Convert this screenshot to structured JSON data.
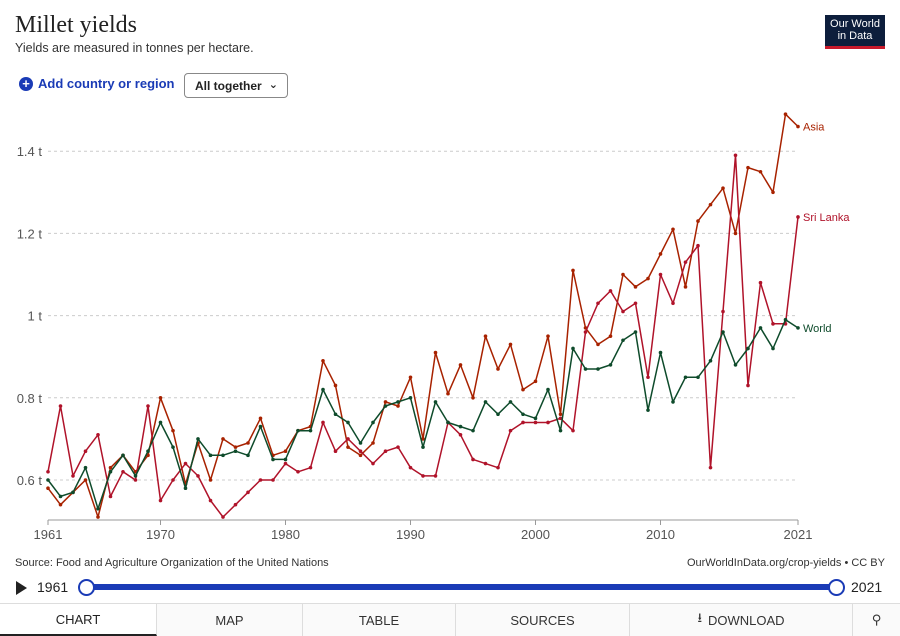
{
  "header": {
    "title": "Millet yields",
    "subtitle": "Yields are measured in tonnes per hectare.",
    "logo_line1": "Our World",
    "logo_line2": "in Data"
  },
  "controls": {
    "add_label": "Add country or region",
    "select_value": "All together"
  },
  "footer": {
    "source": "Source: Food and Agriculture Organization of the United Nations",
    "url": "OurWorldInData.org/crop-yields • CC BY"
  },
  "timeline": {
    "start": "1961",
    "end": "2021"
  },
  "tabs": [
    "CHART",
    "MAP",
    "TABLE",
    "SOURCES",
    "DOWNLOAD"
  ],
  "colors": {
    "asia": "#a82200",
    "sri_lanka": "#b0132a",
    "world": "#0e4b2b",
    "accent": "#1a3bb6"
  },
  "chart_data": {
    "type": "line",
    "x": [
      1961,
      1962,
      1963,
      1964,
      1965,
      1966,
      1967,
      1968,
      1969,
      1970,
      1971,
      1972,
      1973,
      1974,
      1975,
      1976,
      1977,
      1978,
      1979,
      1980,
      1981,
      1982,
      1983,
      1984,
      1985,
      1986,
      1987,
      1988,
      1989,
      1990,
      1991,
      1992,
      1993,
      1994,
      1995,
      1996,
      1997,
      1998,
      1999,
      2000,
      2001,
      2002,
      2003,
      2004,
      2005,
      2006,
      2007,
      2008,
      2009,
      2010,
      2011,
      2012,
      2013,
      2014,
      2015,
      2016,
      2017,
      2018,
      2019,
      2020,
      2021
    ],
    "xticks": [
      "1961",
      "1970",
      "1980",
      "1990",
      "2000",
      "2010",
      "2021"
    ],
    "yticks": [
      "0.6 t",
      "0.8 t",
      "1 t",
      "1.2 t",
      "1.4 t"
    ],
    "ytick_values": [
      0.6,
      0.8,
      1.0,
      1.2,
      1.4
    ],
    "ylim": [
      0.5,
      1.5
    ],
    "series": [
      {
        "name": "Asia",
        "values": [
          0.58,
          0.54,
          0.57,
          0.6,
          0.51,
          0.63,
          0.66,
          0.62,
          0.66,
          0.8,
          0.72,
          0.59,
          0.69,
          0.6,
          0.7,
          0.68,
          0.69,
          0.75,
          0.66,
          0.67,
          0.72,
          0.73,
          0.89,
          0.83,
          0.68,
          0.66,
          0.69,
          0.79,
          0.78,
          0.85,
          0.7,
          0.91,
          0.81,
          0.88,
          0.8,
          0.95,
          0.87,
          0.93,
          0.82,
          0.84,
          0.95,
          0.76,
          1.11,
          0.97,
          0.93,
          0.95,
          1.1,
          1.07,
          1.09,
          1.15,
          1.21,
          1.07,
          1.23,
          1.27,
          1.31,
          1.2,
          1.36,
          1.35,
          1.3,
          1.49,
          1.46
        ]
      },
      {
        "name": "Sri Lanka",
        "values": [
          0.62,
          0.78,
          0.61,
          0.67,
          0.71,
          0.56,
          0.62,
          0.6,
          0.78,
          0.55,
          0.6,
          0.64,
          0.61,
          0.55,
          0.51,
          0.54,
          0.57,
          0.6,
          0.6,
          0.64,
          0.62,
          0.63,
          0.74,
          0.67,
          0.7,
          0.67,
          0.64,
          0.67,
          0.68,
          0.63,
          0.61,
          0.61,
          0.74,
          0.71,
          0.65,
          0.64,
          0.63,
          0.72,
          0.74,
          0.74,
          0.74,
          0.75,
          0.72,
          0.96,
          1.03,
          1.06,
          1.01,
          1.03,
          0.85,
          1.1,
          1.03,
          1.13,
          1.17,
          0.63,
          1.01,
          1.39,
          0.83,
          1.08,
          0.98,
          0.98,
          1.24
        ]
      },
      {
        "name": "World",
        "values": [
          0.6,
          0.56,
          0.57,
          0.63,
          0.53,
          0.62,
          0.66,
          0.61,
          0.67,
          0.74,
          0.68,
          0.58,
          0.7,
          0.66,
          0.66,
          0.67,
          0.66,
          0.73,
          0.65,
          0.65,
          0.72,
          0.72,
          0.82,
          0.76,
          0.74,
          0.69,
          0.74,
          0.78,
          0.79,
          0.8,
          0.68,
          0.79,
          0.74,
          0.73,
          0.72,
          0.79,
          0.76,
          0.79,
          0.76,
          0.75,
          0.82,
          0.72,
          0.92,
          0.87,
          0.87,
          0.88,
          0.94,
          0.96,
          0.77,
          0.91,
          0.79,
          0.85,
          0.85,
          0.89,
          0.96,
          0.88,
          0.92,
          0.97,
          0.92,
          0.99,
          0.97
        ]
      }
    ]
  }
}
